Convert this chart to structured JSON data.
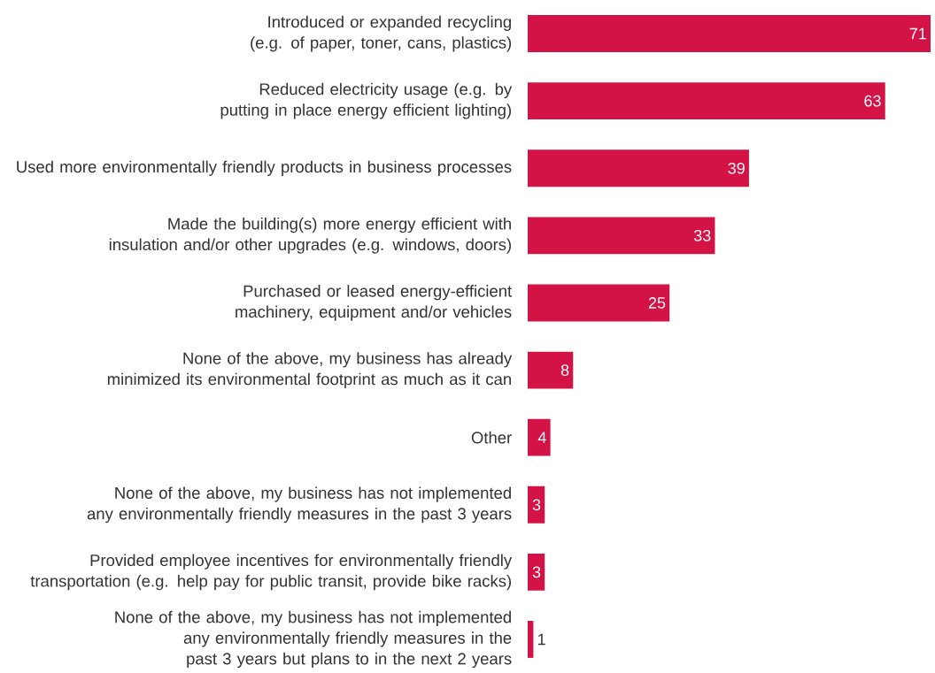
{
  "chart_data": {
    "type": "bar",
    "orientation": "horizontal",
    "categories": [
      "Introduced or expanded recycling (e.g. of paper, toner, cans, plastics)",
      "Reduced electricity usage (e.g. by putting in place energy efficient lighting)",
      "Used more environmentally friendly products in business processes",
      "Made the building(s) more energy efficient with insulation and/or other upgrades (e.g. windows, doors)",
      "Purchased or leased energy-efficient machinery, equipment and/or vehicles",
      "None of the above, my business has already minimized its environmental footprint as much as it can",
      "Other",
      "None of the above, my business has not implemented any environmentally friendly measures in the past 3 years",
      "Provided employee incentives for environmentally friendly transportation (e.g. help pay for public transit, provide bike racks)",
      "None of the above, my business has not implemented any environmentally friendly measures in the past 3 years but plans to in the next 2 years"
    ],
    "values": [
      71,
      63,
      39,
      33,
      25,
      8,
      4,
      3,
      3,
      1
    ],
    "color": "#d31245",
    "tick_labels": "y",
    "data_labels": true
  }
}
